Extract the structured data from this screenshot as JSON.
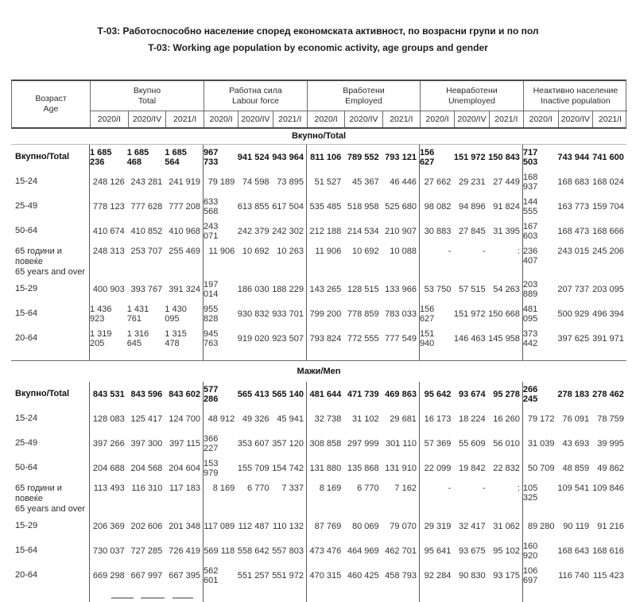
{
  "title": {
    "line1": "Т-03: Работоспособно население според економската активност, по возрасни групи и по пол",
    "line2": "T-03: Working age population by economic activity, age groups and gender"
  },
  "table": {
    "age_header": {
      "mk": "Возраст",
      "en": "Age"
    },
    "groups": [
      {
        "mk": "Вкупно",
        "en": "Total"
      },
      {
        "mk": "Работна сила",
        "en": "Labour force"
      },
      {
        "mk": "Вработени",
        "en": "Employed"
      },
      {
        "mk": "Невработени",
        "en": "Unemployed"
      },
      {
        "mk": "Неактивно население",
        "en": "Inactive population"
      }
    ],
    "periods": [
      "2020/I",
      "2020/IV",
      "2021/I"
    ],
    "sections": [
      {
        "band": "Вкупно/Total",
        "rows": [
          {
            "label": "Вкупно/Total",
            "bold": true,
            "values": [
              "1 685 236",
              "1 685 468",
              "1 685 564",
              "967 733",
              "941 524",
              "943 964",
              "811 106",
              "789 552",
              "793 121",
              "156 627",
              "151 972",
              "150 843",
              "717 503",
              "743 944",
              "741 600"
            ]
          },
          {
            "label": "15-24",
            "values": [
              "248 126",
              "243 281",
              "241 919",
              "79 189",
              "74 598",
              "73 895",
              "51 527",
              "45 367",
              "46 446",
              "27 662",
              "29 231",
              "27 449",
              "168 937",
              "168 683",
              "168 024"
            ]
          },
          {
            "label": "25-49",
            "values": [
              "778 123",
              "777 628",
              "777 208",
              "633 568",
              "613 855",
              "617 504",
              "535 485",
              "518 958",
              "525 680",
              "98 082",
              "94 896",
              "91 824",
              "144 555",
              "163 773",
              "159 704"
            ]
          },
          {
            "label": "50-64",
            "values": [
              "410 674",
              "410 852",
              "410 968",
              "243 071",
              "242 379",
              "242 302",
              "212 188",
              "214 534",
              "210 907",
              "30 883",
              "27 845",
              "31 395",
              "167 603",
              "168 473",
              "168 666"
            ]
          },
          {
            "label": "65 години и повеќе",
            "label2": "65 years and over",
            "values": [
              "248 313",
              "253 707",
              "255 469",
              "11 906",
              "10 692",
              "10 263",
              "11 906",
              "10 692",
              "10 088",
              "-",
              "-",
              ":",
              "236 407",
              "243 015",
              "245 206"
            ]
          },
          {
            "label": "15-29",
            "values": [
              "400 903",
              "393 767",
              "391 324",
              "197 014",
              "186 030",
              "188 229",
              "143 265",
              "128 515",
              "133 966",
              "53 750",
              "57 515",
              "54 263",
              "203 889",
              "207 737",
              "203 095"
            ]
          },
          {
            "label": "15-64",
            "values": [
              "1 436 923",
              "1 431 761",
              "1 430 095",
              "955 828",
              "930 832",
              "933 701",
              "799 200",
              "778 859",
              "783 033",
              "156 627",
              "151 972",
              "150 668",
              "481 095",
              "500 929",
              "496 394"
            ]
          },
          {
            "label": "20-64",
            "values": [
              "1 319 205",
              "1 316 645",
              "1 315 478",
              "945 763",
              "919 020",
              "923 507",
              "793 824",
              "772 555",
              "777 549",
              "151 940",
              "146 463",
              "145 958",
              "373 442",
              "397 625",
              "391 971"
            ]
          }
        ]
      },
      {
        "band": "Мажи/Men",
        "rows": [
          {
            "label": "Вкупно/Total",
            "bold": true,
            "values": [
              "843 531",
              "843 596",
              "843 602",
              "577 286",
              "565 413",
              "565 140",
              "481 644",
              "471 739",
              "469 863",
              "95 642",
              "93 674",
              "95 278",
              "266 245",
              "278 183",
              "278 462"
            ]
          },
          {
            "label": "15-24",
            "values": [
              "128 083",
              "125 417",
              "124 700",
              "48 912",
              "49 326",
              "45 941",
              "32 738",
              "31 102",
              "29 681",
              "16 173",
              "18 224",
              "16 260",
              "79 172",
              "76 091",
              "78 759"
            ]
          },
          {
            "label": "25-49",
            "values": [
              "397 266",
              "397 300",
              "397 115",
              "366 227",
              "353 607",
              "357 120",
              "308 858",
              "297 999",
              "301 110",
              "57 369",
              "55 609",
              "56 010",
              "31 039",
              "43 693",
              "39 995"
            ]
          },
          {
            "label": "50-64",
            "values": [
              "204 688",
              "204 568",
              "204 604",
              "153 979",
              "155 709",
              "154 742",
              "131 880",
              "135 868",
              "131 910",
              "22 099",
              "19 842",
              "22 832",
              "50 709",
              "48 859",
              "49 862"
            ]
          },
          {
            "label": "65 години и повеќе",
            "label2": "65 years and over",
            "values": [
              "113 493",
              "116 310",
              "117 183",
              "8 169",
              "6 770",
              "7 337",
              "8 169",
              "6 770",
              "7 162",
              "-",
              "-",
              ":",
              "105 325",
              "109 541",
              "109 846"
            ]
          },
          {
            "label": "15-29",
            "values": [
              "206 369",
              "202 606",
              "201 348",
              "117 089",
              "112 487",
              "110 132",
              "87 769",
              "80 069",
              "79 070",
              "29 319",
              "32 417",
              "31 062",
              "89 280",
              "90 119",
              "91 216"
            ]
          },
          {
            "label": "15-64",
            "values": [
              "730 037",
              "727 285",
              "726 419",
              "569 118",
              "558 642",
              "557 803",
              "473 476",
              "464 969",
              "462 701",
              "95 641",
              "93 675",
              "95 102",
              "160 920",
              "168 643",
              "168 616"
            ]
          },
          {
            "label": "20-64",
            "values": [
              "669 298",
              "667 997",
              "667 395",
              "562 601",
              "551 257",
              "551 972",
              "470 315",
              "460 425",
              "458 793",
              "92 284",
              "90 830",
              "93 175",
              "106 697",
              "116 740",
              "115 423"
            ]
          }
        ]
      }
    ]
  }
}
